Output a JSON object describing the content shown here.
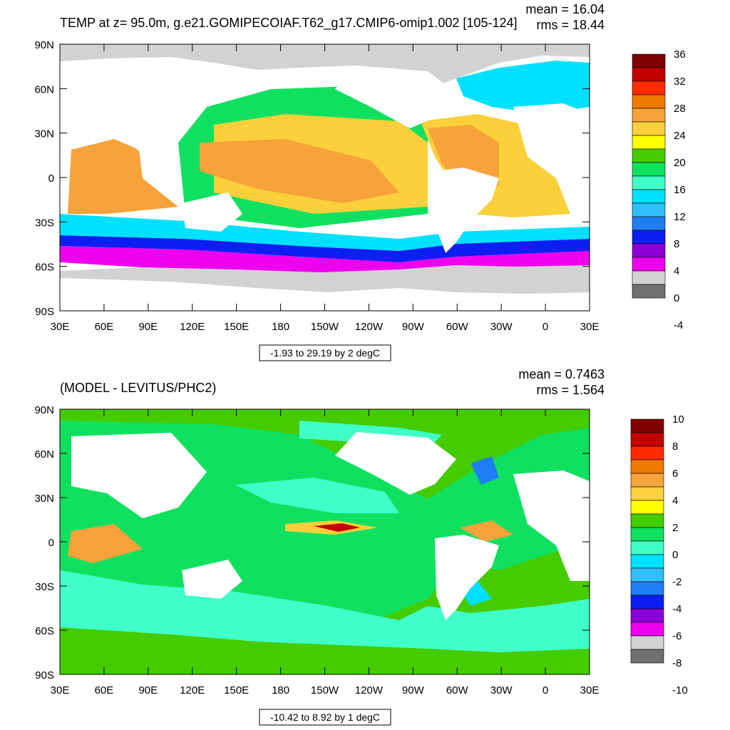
{
  "panels": [
    {
      "title": "TEMP at z=  95.0m, g.e21.GOMIPECOIAF.T62_g17.CMIP6-omip1.002 [105-124]",
      "stats": {
        "mean": "mean = 16.04",
        "rms": "rms = 18.44"
      },
      "range_caption": "-1.93 to 29.19 by 2 degC",
      "lat_labels": [
        "90N",
        "60N",
        "30N",
        "0",
        "30S",
        "60S",
        "90S"
      ],
      "lon_labels": [
        "30E",
        "60E",
        "90E",
        "120E",
        "150E",
        "180",
        "150W",
        "120W",
        "90W",
        "60W",
        "30W",
        "0",
        "30E"
      ],
      "colorbar": {
        "labels": [
          "36",
          "32",
          "28",
          "24",
          "20",
          "16",
          "12",
          "8",
          "4",
          "0",
          "-4"
        ],
        "colors": [
          "#7e0000",
          "#c40000",
          "#ff2a00",
          "#f07a00",
          "#f7a23a",
          "#fcd03a",
          "#ffff00",
          "#44cc00",
          "#10e060",
          "#40ffc8",
          "#00e0ff",
          "#30c0ff",
          "#1f7ef5",
          "#0a1ff0",
          "#8c00d8",
          "#ee00ee",
          "#d2d2d2",
          "#707070"
        ]
      }
    },
    {
      "title": "(MODEL - LEVITUS/PHC2)",
      "stats": {
        "mean": "mean = 0.7463",
        "rms": "rms = 1.564"
      },
      "range_caption": "-10.42 to 8.92 by 1 degC",
      "lat_labels": [
        "90N",
        "60N",
        "30N",
        "0",
        "30S",
        "60S",
        "90S"
      ],
      "lon_labels": [
        "30E",
        "60E",
        "90E",
        "120E",
        "150E",
        "180",
        "150W",
        "120W",
        "90W",
        "60W",
        "30W",
        "0",
        "30E"
      ],
      "colorbar": {
        "labels": [
          "10",
          "8",
          "6",
          "4",
          "2",
          "0",
          "-2",
          "-4",
          "-6",
          "-8",
          "-10"
        ],
        "colors": [
          "#7e0000",
          "#c40000",
          "#ff2a00",
          "#f07a00",
          "#f7a23a",
          "#fcd03a",
          "#ffff00",
          "#44cc00",
          "#10e060",
          "#40ffc8",
          "#00e0ff",
          "#30c0ff",
          "#1f7ef5",
          "#0a1ff0",
          "#8c00d8",
          "#ee00ee",
          "#d2d2d2",
          "#707070"
        ]
      }
    }
  ]
}
